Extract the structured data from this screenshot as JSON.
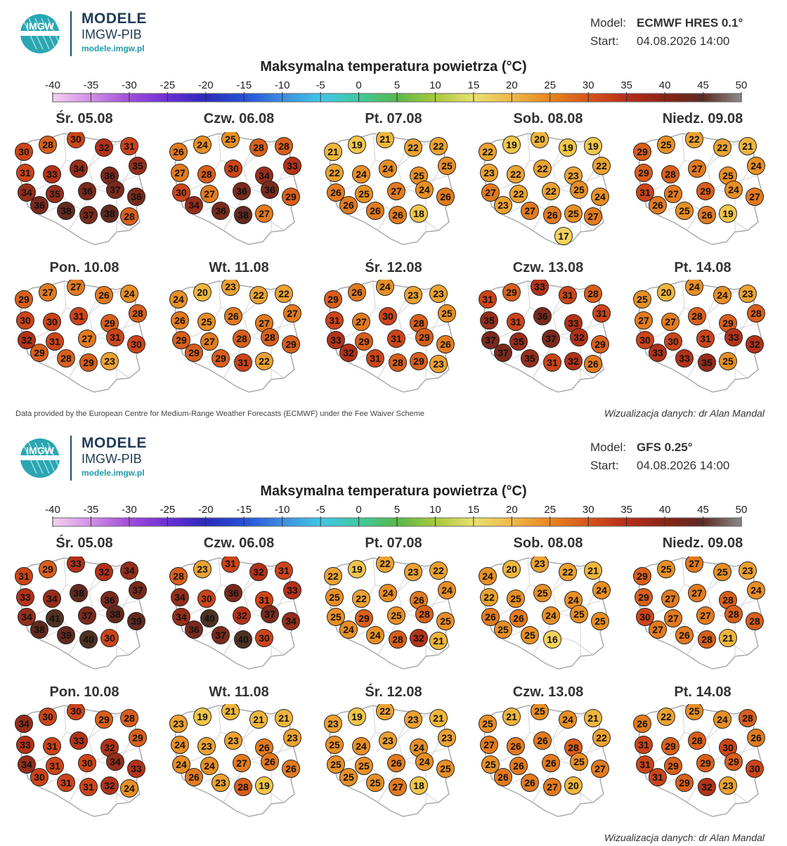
{
  "brand": {
    "name": "MODELE",
    "org": "IMGW-PIB",
    "url": "modele.imgw.pl",
    "logo_text": "IMGW"
  },
  "labels": {
    "model": "Model:",
    "start": "Start:"
  },
  "title": "Maksymalna temperatura powietrza (°C)",
  "scale": {
    "ticks": [
      "-40",
      "-35",
      "-30",
      "-25",
      "-20",
      "-15",
      "-10",
      "-5",
      "0",
      "5",
      "10",
      "15",
      "20",
      "25",
      "30",
      "35",
      "40",
      "45",
      "50"
    ],
    "gradient": [
      "#f5d0f0",
      "#d18ee8",
      "#a24cd9",
      "#6b2fd6",
      "#2a2ab8",
      "#2650d8",
      "#3b8de0",
      "#41c6e8",
      "#3fc9a0",
      "#57b94a",
      "#a8c93c",
      "#e8e070",
      "#f0b848",
      "#e8861e",
      "#d8541a",
      "#b82c18",
      "#8a2414",
      "#5c2a22",
      "#8c8a8c"
    ]
  },
  "footer": {
    "credit": "Data provided by the European Centre for Medium-Range Weather Forecasts (ECMWF) under the Fee Waiver Scheme",
    "author": "Wizualizacja danych: dr Alan Mandal"
  },
  "panels": [
    {
      "model": "ECMWF HRES 0.1°",
      "start": "04.08.2026 14:00",
      "days": [
        {
          "label": "Śr. 05.08",
          "temps": [
            30,
            28,
            30,
            32,
            31,
            35,
            31,
            33,
            34,
            36,
            34,
            35,
            36,
            37,
            36,
            36,
            38,
            37,
            38,
            28
          ]
        },
        {
          "label": "Czw. 06.08",
          "temps": [
            26,
            24,
            25,
            28,
            28,
            33,
            27,
            28,
            30,
            34,
            30,
            27,
            36,
            36,
            29,
            34,
            36,
            38,
            27
          ]
        },
        {
          "label": "Pt. 07.08",
          "temps": [
            21,
            19,
            21,
            22,
            22,
            25,
            22,
            24,
            24,
            25,
            26,
            25,
            27,
            24,
            26,
            26,
            26,
            26,
            18
          ]
        },
        {
          "label": "Sob. 08.08",
          "temps": [
            22,
            19,
            20,
            19,
            19,
            22,
            23,
            22,
            22,
            23,
            27,
            22,
            22,
            25,
            24,
            23,
            27,
            26,
            25,
            27,
            17
          ]
        },
        {
          "label": "Niedz. 09.08",
          "temps": [
            29,
            25,
            22,
            22,
            21,
            24,
            29,
            28,
            27,
            25,
            31,
            27,
            29,
            24,
            27,
            26,
            25,
            26,
            19
          ]
        }
      ]
    },
    {
      "model": "GFS 0.25°",
      "start": "04.08.2026 14:00",
      "days": [
        {
          "label": "Śr. 05.08",
          "temps": [
            31,
            29,
            33,
            32,
            34,
            37,
            33,
            34,
            38,
            36,
            34,
            41,
            37,
            38,
            39,
            38,
            39,
            40,
            30
          ]
        },
        {
          "label": "Czw. 06.08",
          "temps": [
            28,
            23,
            31,
            32,
            31,
            33,
            34,
            30,
            36,
            31,
            34,
            40,
            32,
            37,
            34,
            36,
            37,
            40,
            30
          ]
        },
        {
          "label": "Pt. 07.08",
          "temps": [
            22,
            19,
            22,
            23,
            22,
            24,
            25,
            22,
            24,
            26,
            25,
            29,
            25,
            28,
            25,
            24,
            24,
            28,
            32,
            21
          ]
        },
        {
          "label": "Sob. 08.08",
          "temps": [
            24,
            20,
            23,
            22,
            21,
            24,
            22,
            25,
            25,
            24,
            26,
            26,
            24,
            25,
            25,
            25,
            25,
            16
          ]
        },
        {
          "label": "Niedz. 09.08",
          "temps": [
            29,
            25,
            27,
            25,
            23,
            24,
            29,
            27,
            27,
            28,
            30,
            27,
            27,
            28,
            28,
            27,
            26,
            28,
            21
          ]
        }
      ]
    }
  ],
  "panels_row2": [
    [
      {
        "label": "Pon. 10.08",
        "temps": [
          29,
          27,
          27,
          26,
          24,
          28,
          30,
          30,
          31,
          29,
          32,
          31,
          27,
          31,
          30,
          29,
          28,
          29,
          23
        ]
      },
      {
        "label": "Wt. 11.08",
        "temps": [
          24,
          20,
          23,
          22,
          22,
          27,
          26,
          25,
          26,
          27,
          29,
          27,
          28,
          28,
          29,
          29,
          29,
          31,
          22
        ]
      },
      {
        "label": "Śr. 12.08",
        "temps": [
          29,
          26,
          24,
          23,
          23,
          25,
          31,
          27,
          30,
          28,
          33,
          29,
          31,
          29,
          26,
          32,
          31,
          28,
          29,
          23
        ]
      },
      {
        "label": "Czw. 13.08",
        "temps": [
          31,
          29,
          33,
          31,
          28,
          31,
          35,
          31,
          36,
          33,
          37,
          35,
          37,
          32,
          29,
          37,
          35,
          31,
          32,
          26
        ]
      },
      {
        "label": "Pt. 14.08",
        "temps": [
          25,
          20,
          24,
          24,
          23,
          28,
          27,
          27,
          28,
          29,
          30,
          30,
          31,
          33,
          32,
          33,
          33,
          35,
          25
        ]
      }
    ],
    [
      {
        "label": "Pon. 10.08",
        "temps": [
          34,
          30,
          30,
          29,
          28,
          29,
          33,
          31,
          33,
          32,
          34,
          31,
          30,
          34,
          33,
          30,
          31,
          31,
          32,
          24
        ]
      },
      {
        "label": "Wt. 11.08",
        "temps": [
          23,
          19,
          21,
          21,
          21,
          23,
          24,
          23,
          23,
          26,
          24,
          24,
          27,
          26,
          26,
          26,
          23,
          28,
          19
        ]
      },
      {
        "label": "Śr. 12.08",
        "temps": [
          23,
          19,
          22,
          23,
          21,
          23,
          25,
          24,
          23,
          24,
          25,
          25,
          26,
          24,
          25,
          25,
          25,
          27,
          18
        ]
      },
      {
        "label": "Czw. 13.08",
        "temps": [
          25,
          21,
          25,
          24,
          21,
          22,
          27,
          26,
          26,
          28,
          25,
          26,
          26,
          25,
          27,
          26,
          26,
          27,
          20
        ]
      },
      {
        "label": "Pt. 14.08",
        "temps": [
          26,
          22,
          25,
          24,
          28,
          26,
          31,
          29,
          28,
          30,
          31,
          29,
          29,
          29,
          30,
          31,
          29,
          32,
          23
        ]
      }
    ]
  ]
}
